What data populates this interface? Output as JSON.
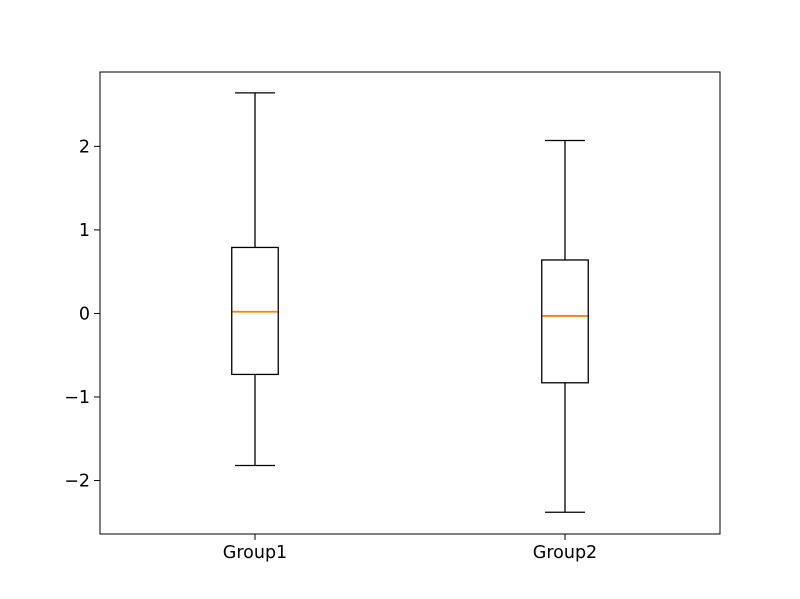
{
  "chart_data": {
    "type": "boxplot",
    "title": "",
    "xlabel": "",
    "ylabel": "",
    "categories": [
      "Group1",
      "Group2"
    ],
    "series": [
      {
        "name": "Group1",
        "position": 1,
        "whisker_low": -1.82,
        "q1": -0.73,
        "median": 0.02,
        "q3": 0.79,
        "whisker_high": 2.64,
        "outliers": []
      },
      {
        "name": "Group2",
        "position": 2,
        "whisker_low": -2.38,
        "q1": -0.83,
        "median": -0.03,
        "q3": 0.64,
        "whisker_high": 2.07,
        "outliers": []
      }
    ],
    "xlim": [
      0.5,
      2.5
    ],
    "ylim": [
      -2.64,
      2.89
    ],
    "xtick_positions": [
      1,
      2
    ],
    "yticks": [
      -2,
      -1,
      0,
      1,
      2
    ],
    "ytick_labels": [
      "−2",
      "−1",
      "0",
      "1",
      "2"
    ],
    "box_width": 0.15,
    "grid": false,
    "legend_position": "none",
    "colors": {
      "line": "#000000",
      "median": "#ff7f0e",
      "background": "#ffffff",
      "text": "#000000"
    }
  }
}
